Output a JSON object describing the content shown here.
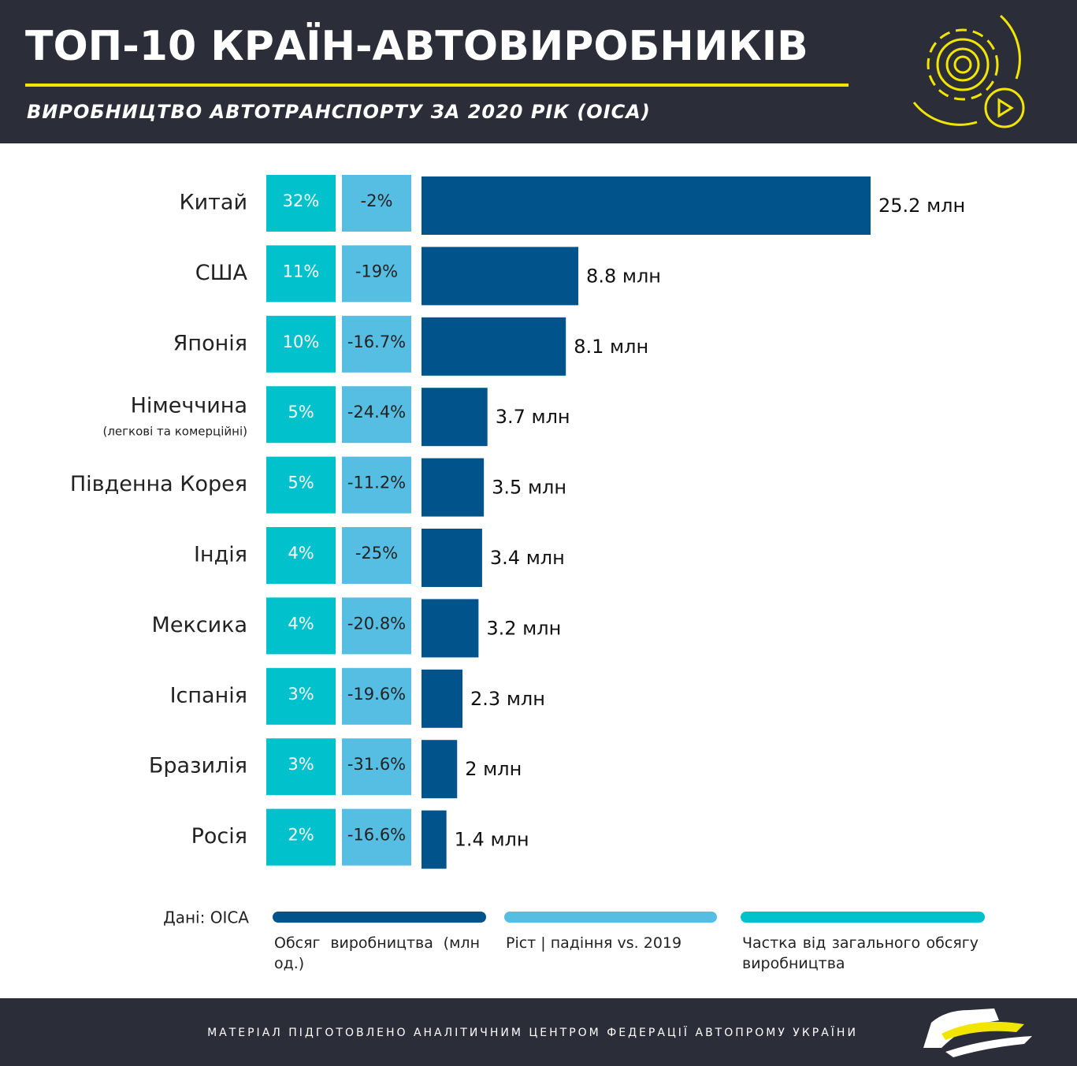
{
  "chart_data": {
    "type": "bar",
    "orientation": "horizontal",
    "title": "ТОП-10 КРАЇН-АВТОВИРОБНИКІВ",
    "subtitle": "ВИРОБНИЦТВО АВТОТРАНСПОРТУ ЗА 2020 РІК (OICA)",
    "categories": [
      "Китай",
      "США",
      "Японія",
      "Німеччина",
      "Південна Корея",
      "Індія",
      "Мексика",
      "Іспанія",
      "Бразилія",
      "Росія"
    ],
    "category_notes": [
      null,
      null,
      null,
      "(легкові та комерційні)",
      null,
      null,
      null,
      null,
      null,
      null
    ],
    "series": [
      {
        "name": "Обсяг виробництва (млн од.)",
        "color": "#00548b",
        "values": [
          25.2,
          8.8,
          8.1,
          3.7,
          3.5,
          3.4,
          3.2,
          2.3,
          2,
          1.4
        ],
        "value_labels": [
          "25.2 млн",
          "8.8 млн",
          "8.1 млн",
          "3.7 млн",
          "3.5 млн",
          "3.4 млн",
          "3.2 млн",
          "2.3 млн",
          "2 млн",
          "1.4 млн"
        ]
      },
      {
        "name": "Ріст | падіння vs. 2019",
        "color": "#56bde3",
        "values": [
          -2,
          -19,
          -16.7,
          -24.4,
          -11.2,
          -25,
          -20.8,
          -19.6,
          -31.6,
          -16.6
        ],
        "value_labels": [
          "-2%",
          "-19%",
          "-16.7%",
          "-24.4%",
          "-11.2%",
          "-25%",
          "-20.8%",
          "-19.6%",
          "-31.6%",
          "-16.6%"
        ]
      },
      {
        "name": "Частка від загального обсягу виробництва",
        "color": "#00c1cc",
        "values": [
          32,
          11,
          10,
          5,
          5,
          4,
          4,
          3,
          3,
          2
        ],
        "value_labels": [
          "32%",
          "11%",
          "10%",
          "5%",
          "5%",
          "4%",
          "4%",
          "3%",
          "3%",
          "2%"
        ]
      }
    ],
    "source": "Дані: OICA",
    "footer": "МАТЕРІАЛ ПІДГОТОВЛЕНО АНАЛІТИЧНИМ ЦЕНТРОМ ФЕДЕРАЦІЇ АВТОПРОМУ УКРАЇНИ"
  }
}
